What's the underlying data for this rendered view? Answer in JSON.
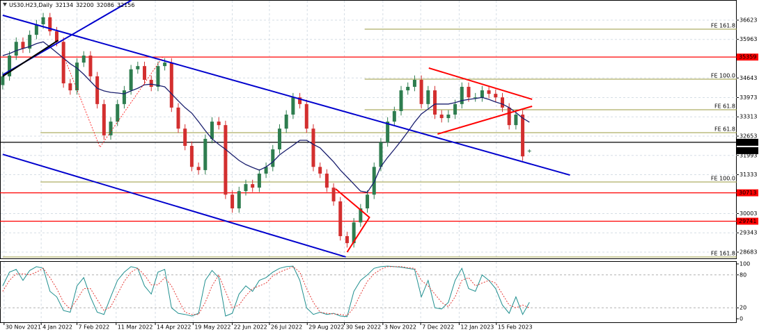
{
  "chart_data": {
    "type": "candlestick",
    "title": "US30.H23,Daily",
    "up_color": "#2e7d4f",
    "down_color": "#d32f2f",
    "grid": true,
    "ylim": [
      28469,
      37312
    ],
    "yticks": [
      28683,
      29343,
      30003,
      31333,
      31993,
      32653,
      33313,
      33973,
      34643,
      35963,
      36623
    ],
    "xlim": [
      -0.4,
      108.7
    ],
    "xticks": [
      {
        "value": 0.2,
        "label": "30 Nov 2021"
      },
      {
        "value": 5.7,
        "label": "4 Jan 2022"
      },
      {
        "value": 11,
        "label": "7 Feb 2022"
      },
      {
        "value": 16.8,
        "label": "11 Mar 2022"
      },
      {
        "value": 22.6,
        "label": "14 Apr 2022"
      },
      {
        "value": 28.2,
        "label": "19 May 2022"
      },
      {
        "value": 34,
        "label": "22 Jun 2022"
      },
      {
        "value": 39.5,
        "label": "26 Jul 2022"
      },
      {
        "value": 45.1,
        "label": "29 Aug 2022"
      },
      {
        "value": 50.6,
        "label": "30 Sep 2022"
      },
      {
        "value": 56.3,
        "label": "3 Nov 2022"
      },
      {
        "value": 61.9,
        "label": "7 Dec 2022"
      },
      {
        "value": 67.6,
        "label": "12 Jan 2023"
      },
      {
        "value": 73.1,
        "label": "15 Feb 2023"
      }
    ],
    "candles": [
      [
        34400,
        34850,
        34250,
        34700
      ],
      [
        34700,
        35560,
        34550,
        35410
      ],
      [
        35410,
        36030,
        35260,
        35880
      ],
      [
        35880,
        36030,
        35500,
        35650
      ],
      [
        35650,
        36270,
        35500,
        36120
      ],
      [
        36120,
        36630,
        35970,
        36480
      ],
      [
        36480,
        36870,
        36330,
        36720
      ],
      [
        36720,
        36870,
        36090,
        36240
      ],
      [
        36240,
        36390,
        35730,
        35880
      ],
      [
        35880,
        36030,
        34310,
        34460
      ],
      [
        34460,
        34610,
        34070,
        34220
      ],
      [
        34220,
        35320,
        34070,
        35170
      ],
      [
        35170,
        35560,
        35020,
        35410
      ],
      [
        35410,
        35560,
        34550,
        34700
      ],
      [
        34700,
        34850,
        33600,
        33750
      ],
      [
        33750,
        33900,
        32530,
        32680
      ],
      [
        32680,
        33300,
        32530,
        33150
      ],
      [
        33150,
        33900,
        33000,
        33750
      ],
      [
        33750,
        34370,
        33600,
        34220
      ],
      [
        34220,
        35090,
        34070,
        34940
      ],
      [
        34940,
        35200,
        34790,
        35050
      ],
      [
        35050,
        35200,
        34430,
        34580
      ],
      [
        34580,
        34730,
        34190,
        34340
      ],
      [
        34340,
        35200,
        34190,
        35050
      ],
      [
        35050,
        35320,
        34900,
        35170
      ],
      [
        35170,
        35320,
        33480,
        33630
      ],
      [
        33630,
        33780,
        32760,
        32910
      ],
      [
        32910,
        33060,
        32170,
        32320
      ],
      [
        32320,
        32470,
        31450,
        31600
      ],
      [
        31600,
        31750,
        31340,
        31490
      ],
      [
        31490,
        32710,
        31340,
        32560
      ],
      [
        32560,
        33300,
        32410,
        33150
      ],
      [
        33150,
        33300,
        32880,
        33030
      ],
      [
        33030,
        33180,
        30500,
        30650
      ],
      [
        30650,
        30800,
        30030,
        30180
      ],
      [
        30180,
        30920,
        30030,
        30770
      ],
      [
        30770,
        31160,
        30620,
        31010
      ],
      [
        31010,
        31160,
        30740,
        30890
      ],
      [
        30890,
        31520,
        30740,
        31370
      ],
      [
        31370,
        31750,
        31220,
        31600
      ],
      [
        31600,
        32350,
        31450,
        32200
      ],
      [
        32200,
        33060,
        32050,
        32910
      ],
      [
        32910,
        33540,
        32760,
        33390
      ],
      [
        33390,
        34130,
        33240,
        33980
      ],
      [
        33980,
        34130,
        33600,
        33750
      ],
      [
        33750,
        33900,
        32760,
        32910
      ],
      [
        32910,
        33060,
        31450,
        31600
      ],
      [
        31600,
        31750,
        31220,
        31370
      ],
      [
        31370,
        31520,
        30740,
        30890
      ],
      [
        30890,
        31040,
        30270,
        30420
      ],
      [
        30420,
        30570,
        29080,
        29230
      ],
      [
        29230,
        29380,
        28840,
        28990
      ],
      [
        28990,
        29850,
        28840,
        29700
      ],
      [
        29700,
        30330,
        29550,
        30180
      ],
      [
        30180,
        30800,
        30030,
        30650
      ],
      [
        30650,
        31750,
        30500,
        31600
      ],
      [
        31600,
        32590,
        31450,
        32440
      ],
      [
        32440,
        33300,
        32290,
        33150
      ],
      [
        33150,
        33660,
        33000,
        33510
      ],
      [
        33510,
        34370,
        33360,
        34220
      ],
      [
        34220,
        34490,
        34070,
        34340
      ],
      [
        34340,
        34730,
        34190,
        34580
      ],
      [
        34580,
        34730,
        33600,
        33750
      ],
      [
        33750,
        34370,
        33600,
        34220
      ],
      [
        34220,
        34370,
        33240,
        33390
      ],
      [
        33390,
        33540,
        33120,
        33270
      ],
      [
        33270,
        33540,
        33120,
        33390
      ],
      [
        33390,
        33900,
        33240,
        33750
      ],
      [
        33750,
        34490,
        33600,
        34340
      ],
      [
        34340,
        34490,
        33830,
        33980
      ],
      [
        33980,
        34130,
        33830,
        33980
      ],
      [
        33980,
        34370,
        33830,
        34220
      ],
      [
        34220,
        34370,
        33950,
        34100
      ],
      [
        34100,
        34250,
        33830,
        33980
      ],
      [
        33980,
        34130,
        33480,
        33630
      ],
      [
        33630,
        33780,
        32880,
        33030
      ],
      [
        33030,
        33540,
        32880,
        33390
      ],
      [
        33390,
        33540,
        31810,
        31960
      ],
      [
        32134,
        32200,
        32086,
        32156
      ]
    ],
    "ma": {
      "color": "#1a1f6e",
      "values": [
        35410,
        35480,
        35580,
        35650,
        35720,
        35820,
        35880,
        35700,
        35510,
        35320,
        35130,
        34980,
        34770,
        34530,
        34290,
        34200,
        34150,
        34130,
        34100,
        34200,
        34290,
        34410,
        34430,
        34390,
        34340,
        34100,
        33860,
        33630,
        33440,
        33150,
        32840,
        32560,
        32370,
        32200,
        32010,
        31820,
        31680,
        31580,
        31490,
        31600,
        31770,
        32010,
        32180,
        32340,
        32510,
        32510,
        32370,
        32250,
        32010,
        31770,
        31490,
        31250,
        31010,
        30770,
        30730,
        31080,
        31610,
        31920,
        32200,
        32490,
        32800,
        33130,
        33410,
        33580,
        33750,
        33750,
        33750,
        33800,
        33870,
        33910,
        33940,
        33980,
        33910,
        33820,
        33750,
        33630,
        33460,
        33270,
        33130
      ]
    },
    "hlines": [
      {
        "value": 35359,
        "color": "#ff0000"
      },
      {
        "value": 30713,
        "color": "#ff0000"
      },
      {
        "value": 29741,
        "color": "#ff0000"
      },
      {
        "value": 32442,
        "color": "#000000"
      }
    ],
    "fib_levels": [
      {
        "label": "FE 161.8",
        "value": 36314,
        "start": 53.6
      },
      {
        "label": "FE 100.0",
        "value": 34602,
        "start": 53.6
      },
      {
        "label": "FE 61.8",
        "value": 33557,
        "start": 53.6
      },
      {
        "label": "FE 61.8",
        "value": 32772,
        "start": 5.6
      },
      {
        "label": "FE 100.0",
        "value": 31085,
        "start": 5.6
      },
      {
        "label": "FE 161.8",
        "value": 28518,
        "start": 0
      }
    ],
    "fib_color": "#9a9a3c",
    "trendlines": [
      {
        "color": "#0000cd",
        "points": [
          [
            0,
            34750
          ],
          [
            19.1,
            37310
          ]
        ]
      },
      {
        "color": "#0000cd",
        "points": [
          [
            0,
            36790
          ],
          [
            84,
            31320
          ]
        ]
      },
      {
        "color": "#0000cd",
        "points": [
          [
            0,
            32030
          ],
          [
            50.8,
            28520
          ]
        ]
      },
      {
        "color": "#000000",
        "points": [
          [
            0,
            34700
          ],
          [
            8.2,
            35930
          ]
        ]
      },
      {
        "color": "#ff0000",
        "points": [
          [
            63.1,
            34985
          ],
          [
            78.4,
            33913
          ]
        ]
      },
      {
        "color": "#ff0000",
        "points": [
          [
            64.4,
            32725
          ],
          [
            78.4,
            33675
          ]
        ]
      },
      {
        "color": "#ff0000",
        "points": [
          [
            49.3,
            30847
          ],
          [
            54.3,
            29872
          ],
          [
            51,
            28683
          ]
        ]
      },
      {
        "color": "#ff0000",
        "dashed": true,
        "points": [
          [
            8.8,
            35530
          ],
          [
            14.4,
            32273
          ],
          [
            23.7,
            35363
          ]
        ]
      }
    ],
    "oscillator": {
      "ylim": [
        -7.6,
        105
      ],
      "yticks": [
        0,
        20,
        80,
        100
      ],
      "levels": [
        20,
        80
      ],
      "series": [
        {
          "color": "#1f8f8f",
          "values": [
            60,
            85,
            90,
            70,
            88,
            95,
            92,
            50,
            40,
            15,
            12,
            60,
            75,
            40,
            12,
            8,
            40,
            70,
            85,
            95,
            92,
            60,
            45,
            85,
            90,
            20,
            10,
            8,
            5,
            10,
            70,
            88,
            75,
            5,
            10,
            45,
            60,
            50,
            70,
            75,
            85,
            92,
            95,
            96,
            70,
            20,
            8,
            12,
            8,
            10,
            5,
            4,
            50,
            70,
            80,
            92,
            95,
            96,
            95,
            94,
            92,
            90,
            40,
            70,
            20,
            18,
            30,
            70,
            92,
            55,
            50,
            80,
            70,
            55,
            25,
            10,
            40,
            8,
            30
          ]
        },
        {
          "color": "#e53935",
          "dashed": true,
          "values": [
            50,
            70,
            82,
            82,
            80,
            85,
            92,
            75,
            55,
            30,
            18,
            35,
            55,
            55,
            35,
            15,
            22,
            45,
            68,
            85,
            92,
            80,
            62,
            62,
            75,
            60,
            35,
            12,
            8,
            8,
            30,
            60,
            80,
            50,
            20,
            25,
            42,
            55,
            60,
            65,
            78,
            85,
            90,
            95,
            85,
            55,
            30,
            12,
            10,
            9,
            8,
            6,
            20,
            45,
            68,
            82,
            90,
            95,
            95,
            95,
            93,
            92,
            70,
            60,
            45,
            30,
            22,
            40,
            70,
            75,
            60,
            65,
            70,
            65,
            45,
            25,
            20,
            25,
            20
          ]
        }
      ]
    }
  }
}
